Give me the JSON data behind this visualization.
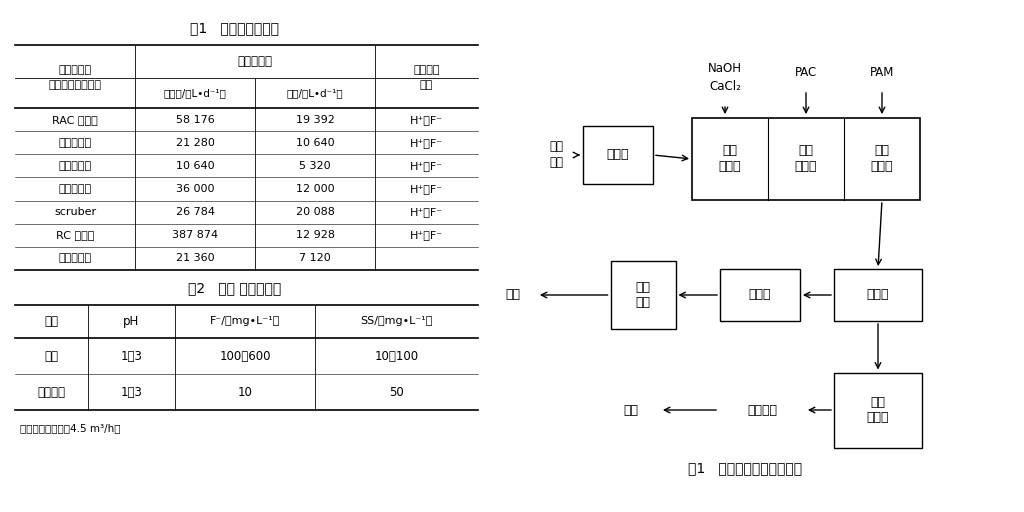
{
  "bg_color": "#ffffff",
  "table1_title": "表1   废水来源及成分",
  "table1_subheader": "废水排放量",
  "table1_col0_h1": "废水排放点",
  "table1_col0_h2": "（清洗、刻蚀等）",
  "table1_col1_h": "最大量/（L•d⁻¹）",
  "table1_col2_h": "平均/（L•d⁻¹）",
  "table1_col3_h1": "废水主要",
  "table1_col3_h2": "成分",
  "table1_rows": [
    [
      "RAC 清洗机",
      "58 176",
      "19 392",
      "H⁺、F⁻"
    ],
    [
      "湿法刻蚀机",
      "21 280",
      "10 640",
      "H⁺、F⁻"
    ],
    [
      "钛铜刻蚀机",
      "10 640",
      "5 320",
      "H⁺、F⁻"
    ],
    [
      "单片清洗机",
      "36 000",
      "12 000",
      "H⁺、F⁻"
    ],
    [
      "scruber",
      "26 784",
      "20 088",
      "H⁺、F⁻"
    ],
    [
      "RC 清洗机",
      "387 874",
      "12 928",
      "H⁺、F⁻"
    ],
    [
      "炉管清洗机",
      "21 360",
      "7 120",
      ""
    ]
  ],
  "table2_title": "表2   设计 进出水水质",
  "table2_h0": "项目",
  "table2_h1": "pH",
  "table2_h2": "F⁻/（mg•L⁻¹）",
  "table2_h3": "SS/（mg•L⁻¹）",
  "table2_rows": [
    [
      "进水",
      "1～3",
      "100～600",
      "10～100"
    ],
    [
      "排水标准",
      "1～3",
      "10",
      "50"
    ]
  ],
  "table2_note": "注：设计流量为：4.5 m³/h。",
  "fig_caption": "图1   生产废水处理工艺流程",
  "chem_naoh": "NaOH",
  "chem_cacl2": "CaCl₂",
  "chem_pac": "PAC",
  "chem_pam": "PAM",
  "box_调节池": "调节池",
  "box_1ji": "一级\n反应池",
  "box_2ji": "二级\n反应池",
  "box_3ji": "三级\n絮凝池",
  "box_sd": "沉淀池",
  "box_cs": "出水池",
  "box_zh": "中和\n系统",
  "box_wn": "污泥\n浓缩池",
  "text_gm": "隔膜厢式",
  "text_shengchan": "生产\n废水",
  "text_waipai": "外排",
  "text_waiyun": "外运"
}
